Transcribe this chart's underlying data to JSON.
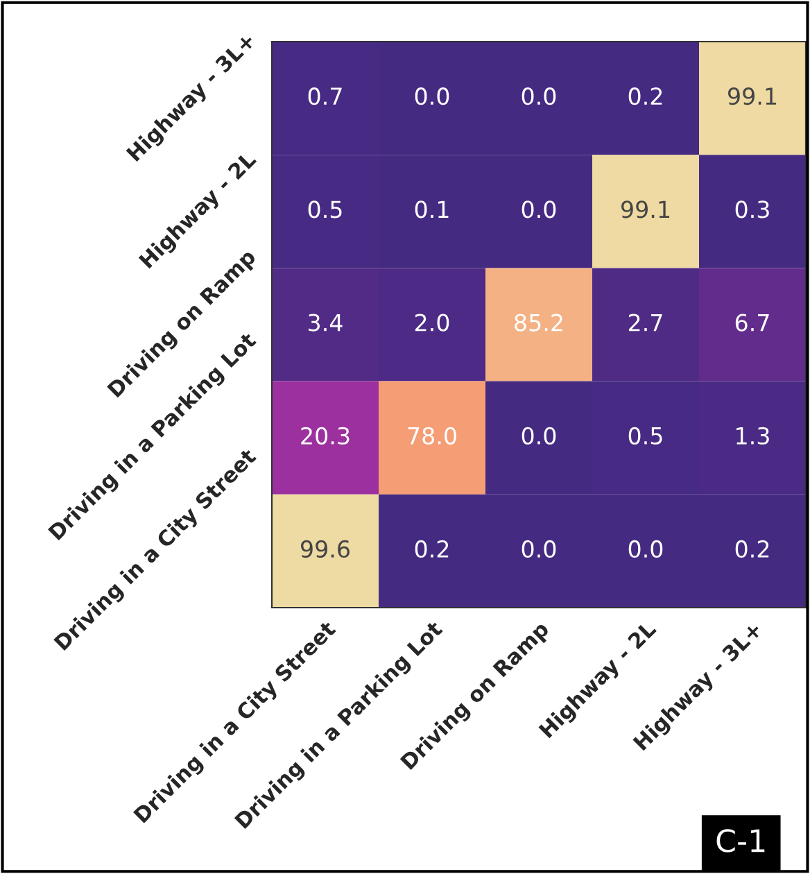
{
  "chart_data": {
    "type": "heatmap",
    "categories": [
      "Driving in a City Street",
      "Driving in a Parking Lot",
      "Driving on Ramp",
      "Highway - 2L",
      "Highway - 3L+"
    ],
    "y_categories": [
      "Highway - 3L+",
      "Highway - 2L",
      "Driving on Ramp",
      "Driving in a Parking Lot",
      "Driving in a City Street"
    ],
    "cells": [
      [
        0.7,
        0.0,
        0.0,
        0.2,
        99.1
      ],
      [
        0.5,
        0.1,
        0.0,
        99.1,
        0.3
      ],
      [
        3.4,
        2.0,
        85.2,
        2.7,
        6.7
      ],
      [
        20.3,
        78.0,
        0.0,
        0.5,
        1.3
      ],
      [
        99.6,
        0.2,
        0.0,
        0.0,
        0.2
      ]
    ],
    "cell_labels": [
      [
        "0.7",
        "0.0",
        "0.0",
        "0.2",
        "99.1"
      ],
      [
        "0.5",
        "0.1",
        "0.0",
        "99.1",
        "0.3"
      ],
      [
        "3.4",
        "2.0",
        "85.2",
        "2.7",
        "6.7"
      ],
      [
        "20.3",
        "78.0",
        "0.0",
        "0.5",
        "1.3"
      ],
      [
        "99.6",
        "0.2",
        "0.0",
        "0.0",
        "0.2"
      ]
    ],
    "annotations": [
      "C-1"
    ]
  }
}
